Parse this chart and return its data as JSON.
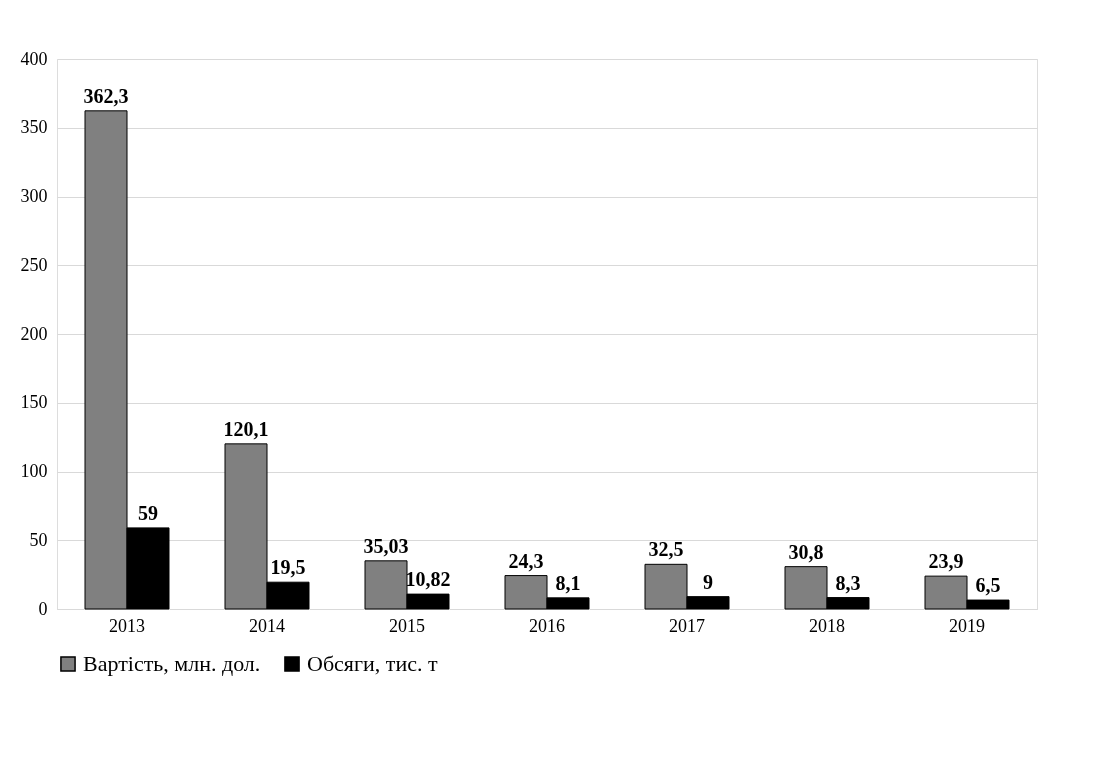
{
  "chart_data": {
    "type": "bar",
    "categories": [
      "2013",
      "2014",
      "2015",
      "2016",
      "2017",
      "2018",
      "2019"
    ],
    "series": [
      {
        "name": "Вартість, млн. дол.",
        "color": "#808080",
        "values": [
          362.3,
          120.1,
          35.03,
          24.3,
          32.5,
          30.8,
          23.9
        ],
        "value_labels": [
          "362,3",
          "120,1",
          "35,03",
          "24,3",
          "32,5",
          "30,8",
          "23,9"
        ]
      },
      {
        "name": "Обсяги, тис. т",
        "color": "#000000",
        "values": [
          59,
          19.5,
          10.82,
          8.1,
          9,
          8.3,
          6.5
        ],
        "value_labels": [
          "59",
          "19,5",
          "10,82",
          "8,1",
          "9",
          "8,3",
          "6,5"
        ]
      }
    ],
    "ylim": [
      0,
      400
    ],
    "yticks": [
      0,
      50,
      100,
      150,
      200,
      250,
      300,
      350,
      400
    ],
    "grid": "y",
    "legend": "bottom"
  }
}
